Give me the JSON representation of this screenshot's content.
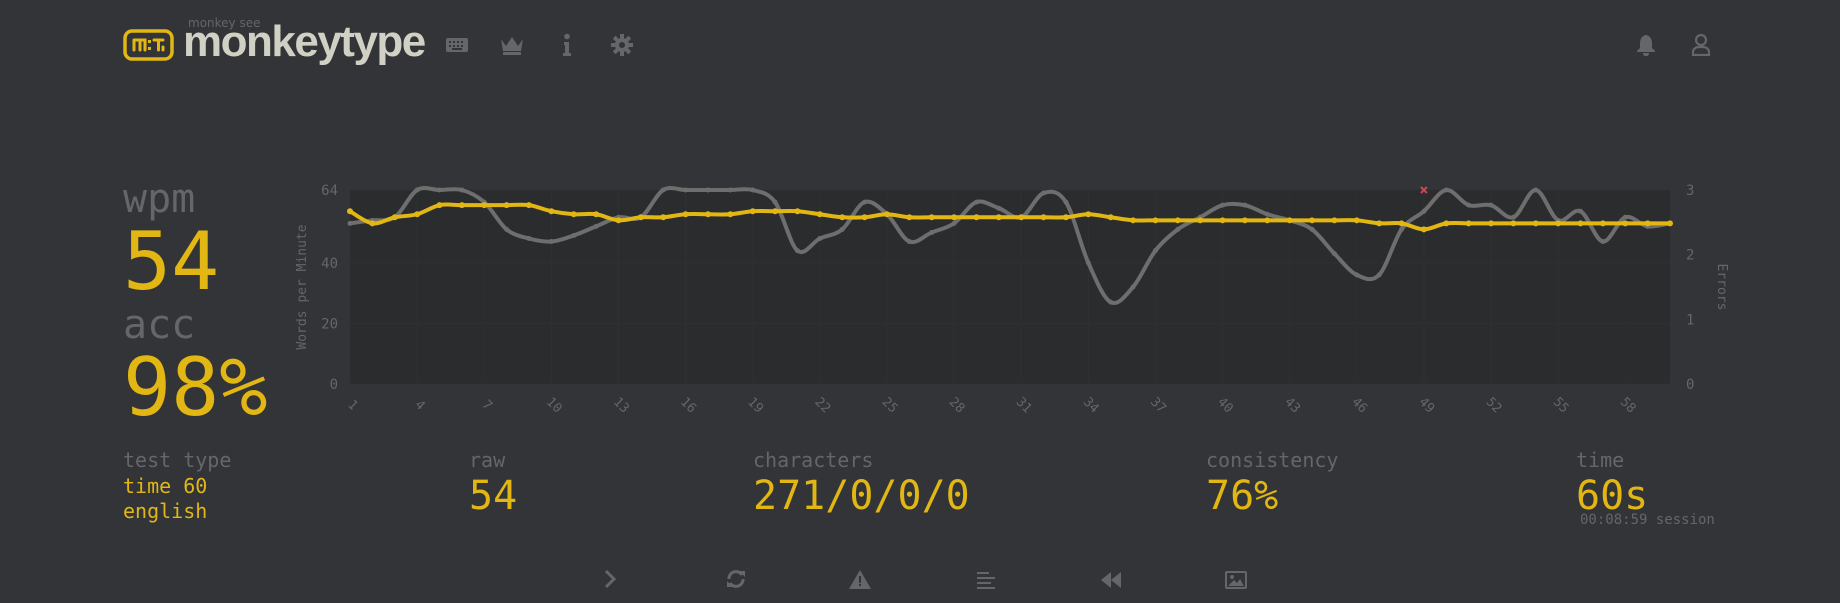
{
  "header": {
    "logo_subtitle": "monkey see",
    "logo_title": "monkeytype",
    "logo_icon_text": "m:t",
    "nav_icons": [
      "keyboard-icon",
      "crown-icon",
      "info-icon",
      "gear-icon"
    ],
    "right_icons": [
      "bell-icon",
      "user-icon"
    ]
  },
  "result": {
    "wpm_label": "wpm",
    "wpm_value": "54",
    "acc_label": "acc",
    "acc_value": "98%"
  },
  "stats": {
    "test_type_label": "test type",
    "test_type_line1": "time 60",
    "test_type_line2": "english",
    "raw_label": "raw",
    "raw_value": "54",
    "characters_label": "characters",
    "characters_value": "271/0/0/0",
    "consistency_label": "consistency",
    "consistency_value": "76%",
    "time_label": "time",
    "time_value": "60s",
    "session_text": "00:08:59 session"
  },
  "bottom_buttons": [
    "next-test-icon",
    "restart-icon",
    "report-icon",
    "words-history-icon",
    "replay-icon",
    "screenshot-icon"
  ],
  "colors": {
    "background": "#323437",
    "accent": "#e2b714",
    "sub": "#646669",
    "text": "#d1d0c5",
    "raw_line": "#6e6e6e",
    "error": "#ca4754",
    "plot_bg": "#2b2c2e"
  },
  "chart_data": {
    "type": "line",
    "ylabel": "Words per Minute",
    "y2label": "Errors",
    "ylim": [
      0,
      64
    ],
    "y2lim": [
      0,
      3
    ],
    "yticks": [
      0,
      20,
      40,
      64
    ],
    "y2ticks": [
      0,
      1,
      2,
      3
    ],
    "xticks": [
      1,
      4,
      7,
      10,
      13,
      16,
      19,
      22,
      25,
      28,
      31,
      34,
      37,
      40,
      43,
      46,
      49,
      52,
      55,
      58
    ],
    "x": [
      1,
      2,
      3,
      4,
      5,
      6,
      7,
      8,
      9,
      10,
      11,
      12,
      13,
      14,
      15,
      16,
      17,
      18,
      19,
      20,
      21,
      22,
      23,
      24,
      25,
      26,
      27,
      28,
      29,
      30,
      31,
      32,
      33,
      34,
      35,
      36,
      37,
      38,
      39,
      40,
      41,
      42,
      43,
      44,
      45,
      46,
      47,
      48,
      49,
      50,
      51,
      52,
      53,
      54,
      55,
      56,
      57,
      58,
      59,
      60
    ],
    "series": [
      {
        "values": [
          57,
          53,
          55,
          56,
          59,
          59,
          59,
          59,
          59,
          57,
          56,
          56,
          54,
          55,
          55,
          56,
          56,
          56,
          57,
          57,
          57,
          56,
          55,
          55,
          56,
          55,
          55,
          55,
          55,
          55,
          55,
          55,
          55,
          56,
          55,
          54,
          54,
          54,
          54,
          54,
          54,
          54,
          54,
          54,
          54,
          54,
          53,
          53,
          51,
          53,
          53,
          53,
          53,
          53,
          53,
          53,
          53,
          53,
          53,
          53
        ]
      },
      {
        "values": [
          53,
          54,
          55,
          64,
          64,
          64,
          60,
          51,
          48,
          47,
          49,
          52,
          55,
          55,
          64,
          64,
          64,
          64,
          64,
          60,
          44,
          48,
          51,
          60,
          56,
          47,
          50,
          53,
          60,
          58,
          55,
          63,
          60,
          40,
          27,
          32,
          44,
          51,
          55,
          59,
          59,
          56,
          54,
          51,
          43,
          36,
          36,
          51,
          57,
          64,
          59,
          59,
          55,
          64,
          54,
          57,
          47,
          55,
          52,
          53
        ]
      }
    ],
    "errors": [
      {
        "x": 49,
        "count": 3
      }
    ]
  }
}
